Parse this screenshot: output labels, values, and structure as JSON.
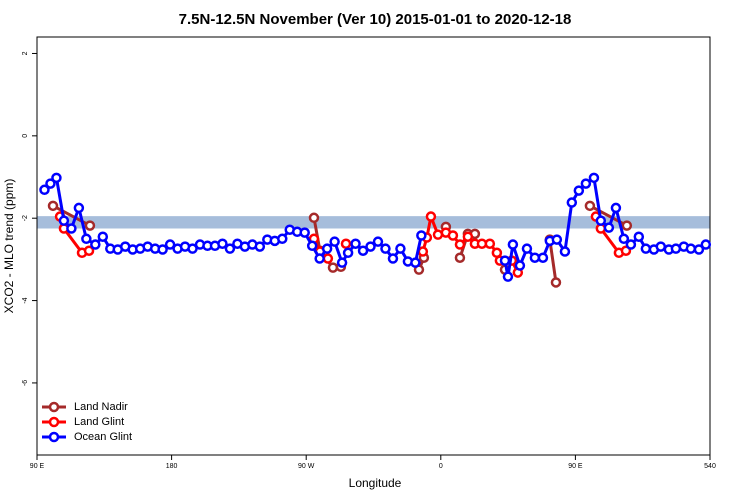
{
  "chart_data": {
    "type": "line",
    "title": "7.5N-12.5N November (Ver 10)   2015-01-01 to 2020-12-18",
    "xlabel": "Longitude",
    "ylabel": "XCO2 - MLO trend (ppm)",
    "xlim": [
      90,
      540
    ],
    "ylim": [
      -7.75,
      2.4
    ],
    "xticks": [
      {
        "value": 90,
        "label": "90 E"
      },
      180,
      {
        "value": 270,
        "label": "90 W"
      },
      {
        "value": 360,
        "label": "0"
      },
      {
        "value": 450,
        "label": "90 E"
      },
      540
    ],
    "yticks": [
      2,
      0,
      -2,
      -4,
      -6
    ],
    "band": [
      -2.25,
      -1.95
    ],
    "band_color": "#a6bddb",
    "legend": "bottom-left",
    "series": [
      {
        "name": "Land Nadir",
        "color": "#a52a2a",
        "x": [
          100.7,
          125.4,
          null,
          275.2,
          279.2,
          287.9,
          293.2,
          null,
          345.4,
          348.7,
          null,
          363.4,
          null,
          372.8,
          378.1,
          382.8,
          null,
          402.9,
          null,
          432.9,
          437,
          null,
          459.7,
          484.4
        ],
        "values": [
          -1.7,
          -2.18,
          null,
          -1.99,
          -2.79,
          -3.2,
          -3.18,
          null,
          -3.25,
          -2.96,
          null,
          -2.21,
          null,
          -2.96,
          -2.38,
          -2.38,
          null,
          -3.25,
          null,
          -2.52,
          -3.56,
          null,
          -1.7,
          -2.18
        ]
      },
      {
        "name": "Land Glint",
        "color": "#ff0000",
        "x": [
          105.4,
          108,
          120.1,
          124.8,
          null,
          275.2,
          279.2,
          284.5,
          null,
          296.6,
          null,
          348,
          350.7,
          353.4,
          358.1,
          363.4,
          368.1,
          372.8,
          378.1,
          382.8,
          387.5,
          392.8,
          397.5,
          399.5,
          407.5,
          411.5,
          null,
          463.7,
          467,
          479.1,
          483.8
        ],
        "values": [
          -1.96,
          -2.25,
          -2.84,
          -2.79,
          null,
          -2.5,
          -2.81,
          -2.98,
          null,
          -2.62,
          null,
          -2.81,
          -2.47,
          -1.96,
          -2.4,
          -2.35,
          -2.42,
          -2.64,
          -2.45,
          -2.62,
          -2.62,
          -2.62,
          -2.84,
          -3.03,
          -3.03,
          -3.32,
          null,
          -1.96,
          -2.25,
          -2.84,
          -2.79
        ]
      },
      {
        "name": "Ocean Glint",
        "color": "#0000ff",
        "x": [
          95,
          99,
          103,
          108,
          113,
          118,
          123,
          129,
          134,
          139,
          144,
          149,
          154,
          159,
          164,
          169,
          174,
          179,
          184,
          189,
          194,
          199,
          204,
          209,
          214,
          219,
          224,
          229,
          234,
          239,
          244,
          249,
          254,
          259,
          264,
          269,
          274,
          279,
          284,
          289,
          294,
          298,
          303,
          308,
          313,
          318,
          323,
          328,
          333,
          338,
          343,
          347,
          null,
          402.9,
          404.9,
          408.2,
          412.9,
          417.6,
          422.9,
          428.3,
          432.9,
          437.6,
          443,
          447.6,
          452.3,
          457,
          462.4,
          467,
          472.4,
          477.1,
          482.4,
          487.1,
          492.4,
          497.1,
          502.5,
          507.1,
          512.5,
          517.2,
          522.5,
          527.2,
          532.6,
          537.2
        ],
        "values": [
          -1.31,
          -1.16,
          -1.02,
          -2.06,
          -2.25,
          -1.75,
          -2.5,
          -2.64,
          -2.45,
          -2.74,
          -2.76,
          -2.69,
          -2.76,
          -2.74,
          -2.69,
          -2.74,
          -2.76,
          -2.64,
          -2.74,
          -2.69,
          -2.74,
          -2.64,
          -2.67,
          -2.67,
          -2.62,
          -2.74,
          -2.62,
          -2.69,
          -2.64,
          -2.69,
          -2.52,
          -2.55,
          -2.5,
          -2.28,
          -2.33,
          -2.35,
          -2.67,
          -2.98,
          -2.74,
          -2.57,
          -3.08,
          -2.84,
          -2.62,
          -2.79,
          -2.69,
          -2.57,
          -2.74,
          -2.98,
          -2.74,
          -3.05,
          -3.08,
          -2.42,
          null,
          -3.03,
          -3.42,
          -2.64,
          -3.15,
          -2.74,
          -2.96,
          -2.96,
          -2.55,
          -2.52,
          -2.81,
          -1.62,
          -1.33,
          -1.16,
          -1.02,
          -2.06,
          -2.23,
          -1.75,
          -2.5,
          -2.64,
          -2.45,
          -2.74,
          -2.76,
          -2.69,
          -2.76,
          -2.74,
          -2.69,
          -2.74,
          -2.76,
          -2.64
        ]
      }
    ]
  }
}
